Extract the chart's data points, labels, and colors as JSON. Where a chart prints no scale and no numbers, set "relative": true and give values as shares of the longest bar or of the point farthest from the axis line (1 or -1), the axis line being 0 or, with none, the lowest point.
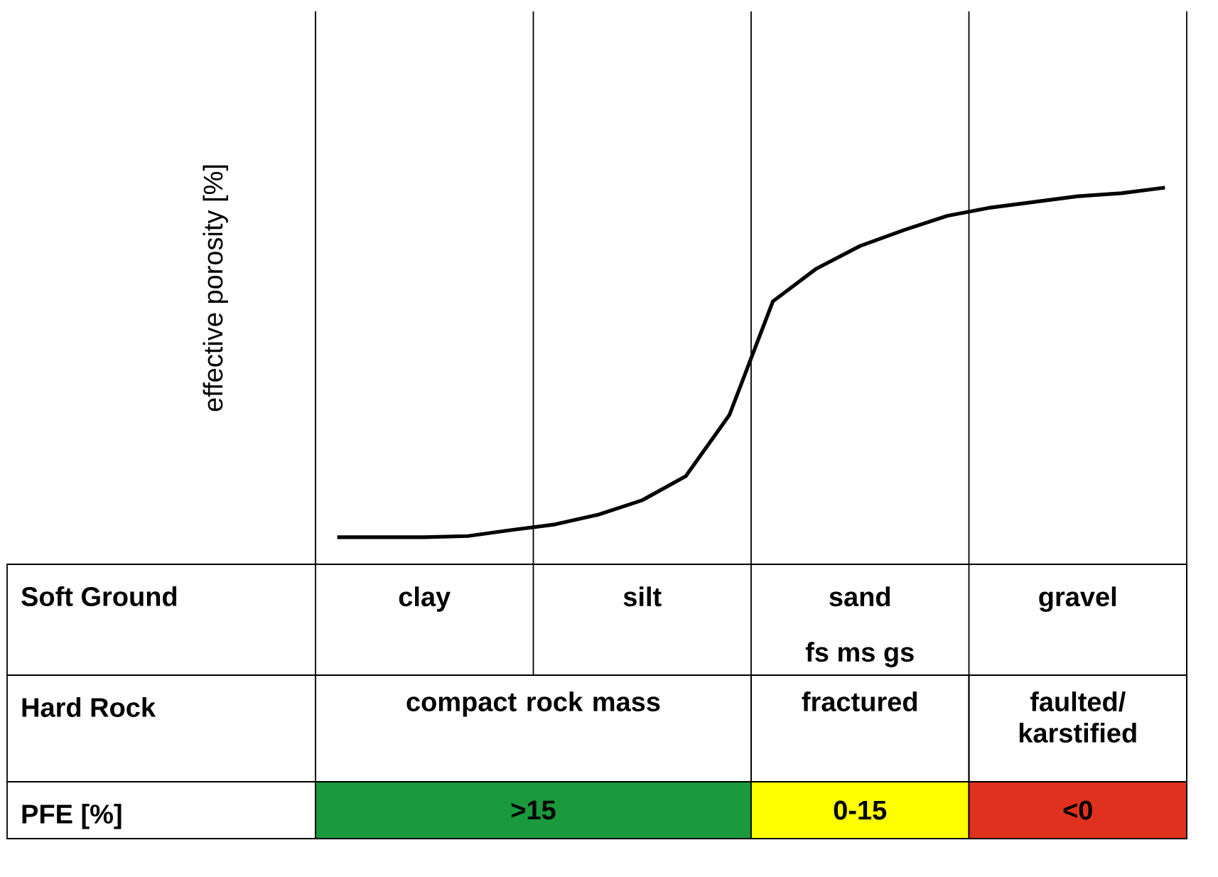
{
  "chart_data": {
    "type": "line",
    "relative": true,
    "ylabel": "effective porosity [%]",
    "categories": [
      null,
      null,
      "clay",
      null,
      null,
      null,
      null,
      "silt",
      null,
      null,
      null,
      null,
      "sand",
      null,
      null,
      null,
      null,
      "gravel",
      null,
      null
    ],
    "series": [
      {
        "color": "#000000",
        "values": [
          0.072,
          0.072,
          0.072,
          0.075,
          0.091,
          0.106,
          0.132,
          0.17,
          0.234,
          0.396,
          0.698,
          0.785,
          0.845,
          0.887,
          0.925,
          0.947,
          0.962,
          0.977,
          0.985,
          1
        ]
      }
    ],
    "annotations": [
      "Soft Ground",
      "Hard Rock",
      "PFE [%]",
      "fs  ms  gs",
      "compact rock mass",
      "fractured",
      "faulted/ karstified",
      ">15",
      "0-15",
      "<0"
    ]
  }
}
